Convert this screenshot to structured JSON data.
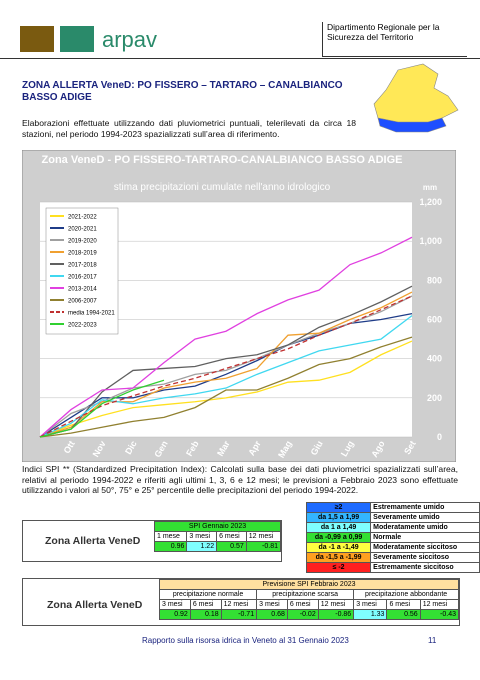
{
  "header": {
    "logo": "arpav",
    "department": "Dipartimento Regionale per la Sicurezza del Territorio"
  },
  "zone_title": "ZONA ALLERTA VeneD:     PO    FISSERO – TARTARO – CANALBIANCO    BASSO ADIGE",
  "intro": "Elaborazioni effettuate utilizzando dati pluviometrici puntuali, telerilevati da circa 18 stazioni, nel periodo 1994-2023 spazializzati sull’area di riferimento.",
  "chart_data": {
    "type": "line",
    "title": "Zona VeneD -  PO   FISSERO-TARTARO-CANALBIANCO BASSO ADIGE",
    "subtitle": "stima precipitazioni cumulate nell'anno idrologico",
    "y_unit": "mm",
    "categories": [
      null,
      "Ott",
      "Nov",
      "Dic",
      "Gen",
      "Feb",
      "Mar",
      "Apr",
      "Mag",
      "Giu",
      "Lug",
      "Ago",
      "Set"
    ],
    "ylim": [
      0,
      1200
    ],
    "yticks": [
      0,
      200,
      400,
      600,
      800,
      {
        "value": 1000,
        "label": "1,000"
      },
      {
        "value": 1200,
        "label": "1,200"
      }
    ],
    "grid": true,
    "series": [
      {
        "name": "2021-2022",
        "color": "#ffe020",
        "values": [
          0,
          60,
          110,
          150,
          165,
          180,
          200,
          230,
          280,
          290,
          330,
          420,
          490
        ]
      },
      {
        "name": "2020-2021",
        "color": "#1f3c88",
        "values": [
          0,
          100,
          200,
          200,
          240,
          260,
          320,
          390,
          470,
          520,
          580,
          600,
          630
        ]
      },
      {
        "name": "2019-2020",
        "color": "#a0a0a0",
        "values": [
          0,
          120,
          180,
          250,
          270,
          320,
          340,
          400,
          470,
          530,
          580,
          640,
          720
        ]
      },
      {
        "name": "2018-2019",
        "color": "#f0a030",
        "values": [
          0,
          50,
          180,
          180,
          250,
          280,
          300,
          350,
          520,
          530,
          600,
          660,
          740
        ]
      },
      {
        "name": "2017-2018",
        "color": "#606060",
        "values": [
          0,
          40,
          230,
          340,
          350,
          360,
          400,
          420,
          470,
          560,
          620,
          690,
          770
        ]
      },
      {
        "name": "2016-2017",
        "color": "#40d8f0",
        "values": [
          0,
          70,
          190,
          170,
          200,
          220,
          250,
          320,
          380,
          440,
          470,
          500,
          620
        ]
      },
      {
        "name": "2013-2014",
        "color": "#e040e0",
        "values": [
          0,
          140,
          240,
          250,
          380,
          500,
          540,
          630,
          700,
          750,
          880,
          940,
          1020
        ]
      },
      {
        "name": "2006-2007",
        "color": "#908030",
        "values": [
          0,
          20,
          50,
          80,
          100,
          150,
          240,
          240,
          300,
          370,
          400,
          460,
          510
        ]
      },
      {
        "name": "media 1994-2021",
        "color": "#c03030",
        "dashed": true,
        "values": [
          0,
          80,
          160,
          210,
          260,
          300,
          350,
          400,
          450,
          520,
          580,
          650,
          720
        ]
      },
      {
        "name": "2022-2023",
        "color": "#30d030",
        "values": [
          0,
          40,
          170,
          240,
          290,
          null,
          null,
          null,
          null,
          null,
          null,
          null,
          null
        ]
      }
    ]
  },
  "spi_note": "Indici SPI ** (Standardized Precipitation Index): Calcolati sulla base dei dati pluviometrici spazializzati sull’area, relativi al periodo 1994-2022 e riferiti agli ultimi 1, 3, 6 e 12 mesi; le previsioni a Febbraio 2023 sono effettuate utilizzando i valori al 50°, 75° e 25° percentile delle precipitazioni del periodo 1994-2022.",
  "spi_legend": [
    {
      "range": "≥2",
      "class": "Estremamente umido",
      "color": "#1e6bff"
    },
    {
      "range": "da   1,5  a  1,99",
      "class": "Severamente umido",
      "color": "#33b5ff"
    },
    {
      "range": "da   1   a  1,49",
      "class": "Moderatamente umido",
      "color": "#7fffff"
    },
    {
      "range": "da  -0,99 a 0,99",
      "class": "Normale",
      "color": "#33e033"
    },
    {
      "range": "da   -1   a  -1,49",
      "class": "Moderatamente siccitoso",
      "color": "#ffff40"
    },
    {
      "range": "da  -1,5  a -1,99",
      "class": "Severamente siccitoso",
      "color": "#ffa020"
    },
    {
      "range": "≤ -2",
      "class": "Estremamente siccitoso",
      "color": "#ff2020"
    }
  ],
  "table1": {
    "label": "Zona Allerta VeneD",
    "header": "SPI Gennaio 2023",
    "columns": [
      "1 mese",
      "3 mesi",
      "6 mesi",
      "12 mesi"
    ],
    "values": [
      0.96,
      1.22,
      0.57,
      -0.81
    ]
  },
  "table2": {
    "label": "Zona Allerta VeneD",
    "header": "Previsione SPI Febbraio 2023",
    "groups": [
      {
        "name": "precipitazione normale",
        "columns": [
          "3 mesi",
          "6 mesi",
          "12 mesi"
        ],
        "values": [
          0.92,
          0.18,
          -0.71
        ]
      },
      {
        "name": "precipitazione scarsa",
        "columns": [
          "3 mesi",
          "6 mesi",
          "12 mesi"
        ],
        "values": [
          0.68,
          -0.02,
          -0.86
        ]
      },
      {
        "name": "precipitazione abbondante",
        "columns": [
          "3 mesi",
          "6 mesi",
          "12 mesi"
        ],
        "values": [
          1.33,
          0.56,
          -0.43
        ]
      }
    ]
  },
  "footer": {
    "text": "Rapporto sulla risorsa idrica in Veneto al 31 Gennaio 2023",
    "page": "11"
  }
}
